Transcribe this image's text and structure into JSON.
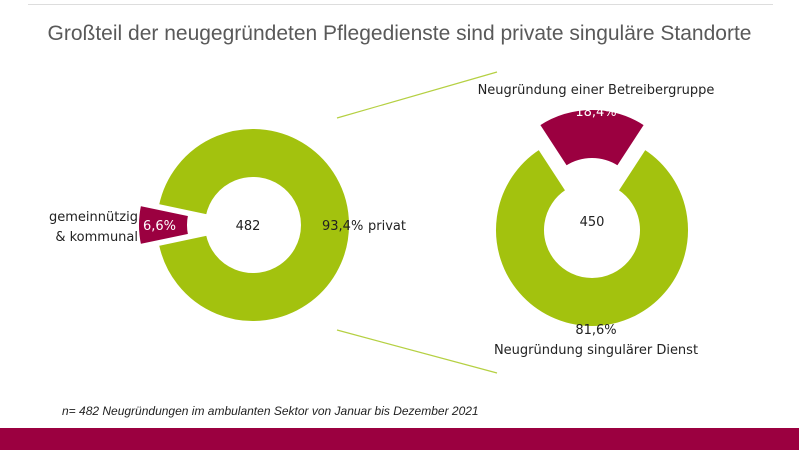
{
  "title": "Großteil der neugegründeten Pflegedienste sind private singuläre Standorte",
  "footnote": "n= 482 Neugründungen im ambulanten Sektor von Januar bis Dezember 2021",
  "colors": {
    "green": "#a3c20e",
    "crimson": "#9b0040",
    "connector": "#b5d042",
    "bottom_bar": "#9b0040"
  },
  "chart_data": [
    {
      "type": "pie",
      "subtype": "donut",
      "center_label": "482",
      "slices": [
        {
          "label": "privat",
          "value": 93.4,
          "value_label": "93,4%",
          "color": "#a3c20e"
        },
        {
          "label": "gemeinnützig & kommunal",
          "label_lines": [
            "gemeinnützig",
            "& kommunal"
          ],
          "value": 6.6,
          "value_label": "6,6%",
          "color": "#9b0040",
          "exploded": true
        }
      ]
    },
    {
      "type": "pie",
      "subtype": "donut",
      "center_label": "450",
      "slices": [
        {
          "label": "Neugründung singulärer Dienst",
          "value": 81.6,
          "value_label": "81,6%",
          "color": "#a3c20e"
        },
        {
          "label": "Neugründung einer Betreibergruppe",
          "value": 18.4,
          "value_label": "18,4%",
          "color": "#9b0040",
          "exploded": true
        }
      ]
    }
  ]
}
